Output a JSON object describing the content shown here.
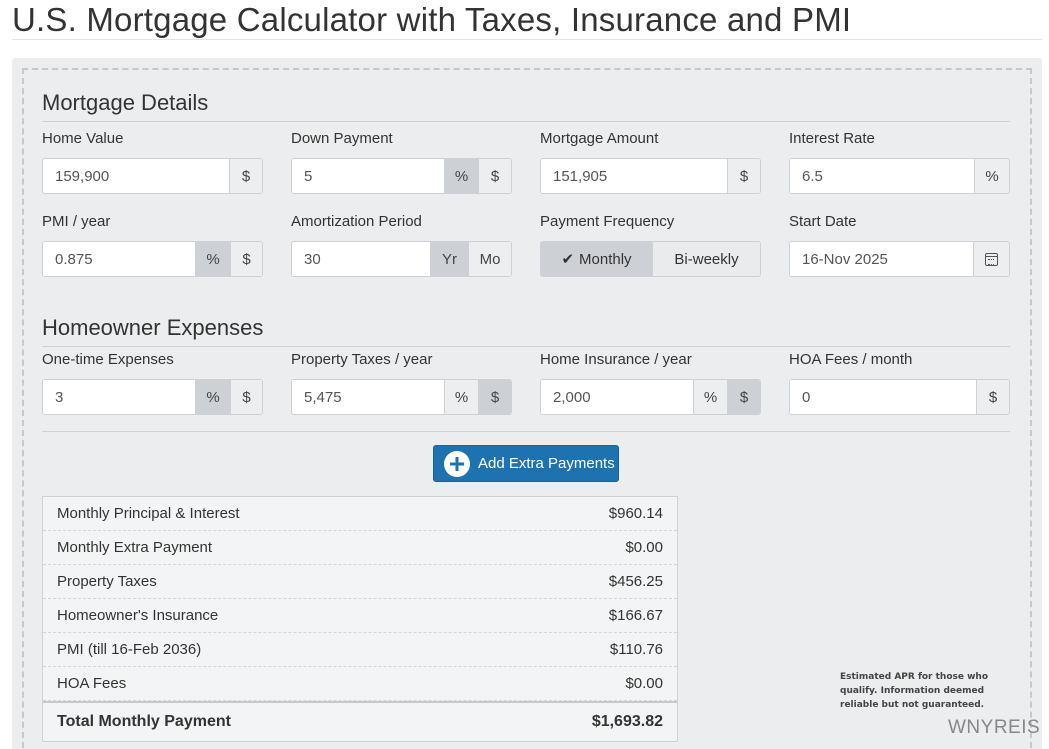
{
  "page_title": "U.S. Mortgage Calculator with Taxes, Insurance and PMI",
  "sections": {
    "mortgage_details": "Mortgage Details",
    "homeowner_expenses": "Homeowner Expenses"
  },
  "fields": {
    "home_value": {
      "label": "Home Value",
      "value": "159,900",
      "unit": "$"
    },
    "down_payment": {
      "label": "Down Payment",
      "value": "5",
      "unit_pct": "%",
      "unit_dollar": "$"
    },
    "mortgage_amount": {
      "label": "Mortgage Amount",
      "value": "151,905",
      "unit": "$"
    },
    "interest_rate": {
      "label": "Interest Rate",
      "value": "6.5",
      "unit": "%"
    },
    "pmi": {
      "label": "PMI / year",
      "value": "0.875",
      "unit_pct": "%",
      "unit_dollar": "$"
    },
    "amortization": {
      "label": "Amortization Period",
      "value": "30",
      "unit_yr": "Yr",
      "unit_mo": "Mo"
    },
    "payment_frequency": {
      "label": "Payment Frequency",
      "monthly": "Monthly",
      "biweekly": "Bi-weekly"
    },
    "start_date": {
      "label": "Start Date",
      "value": "16-Nov 2025"
    },
    "one_time": {
      "label": "One-time Expenses",
      "value": "3",
      "unit_pct": "%",
      "unit_dollar": "$"
    },
    "property_taxes": {
      "label": "Property Taxes / year",
      "value": "5,475",
      "unit_pct": "%",
      "unit_dollar": "$"
    },
    "home_insurance": {
      "label": "Home Insurance / year",
      "value": "2,000",
      "unit_pct": "%",
      "unit_dollar": "$"
    },
    "hoa": {
      "label": "HOA Fees / month",
      "value": "0",
      "unit": "$"
    }
  },
  "extra_button": "Add Extra Payments",
  "summary": [
    {
      "label": "Monthly Principal & Interest",
      "value": "$960.14"
    },
    {
      "label": "Monthly Extra Payment",
      "value": "$0.00"
    },
    {
      "label": "Property Taxes",
      "value": "$456.25"
    },
    {
      "label": "Homeowner's Insurance",
      "value": "$166.67"
    },
    {
      "label": "PMI (till 16-Feb 2036)",
      "value": "$110.76"
    },
    {
      "label": "HOA Fees",
      "value": "$0.00"
    }
  ],
  "total": {
    "label": "Total Monthly Payment",
    "value": "$1,693.82"
  },
  "disclaimer": "Estimated APR for those who qualify. Information deemed reliable but not guaranteed.",
  "watermark": "WNYREIS",
  "colors": {
    "primary_button": "#1f72b0",
    "panel_bg": "#ecedee"
  },
  "icons": {
    "start_date": "calendar-icon",
    "frequency_active": "check-icon",
    "extra_button": "plus-circle-icon"
  }
}
